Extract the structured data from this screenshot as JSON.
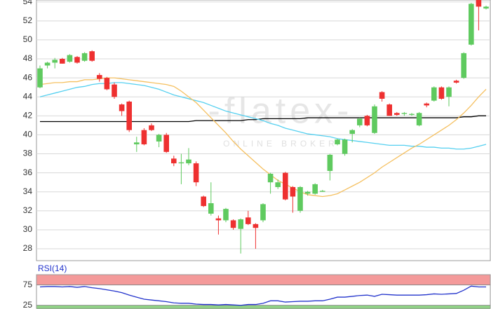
{
  "chart_data": [
    {
      "type": "candlestick",
      "open": [
        45,
        47.3,
        47.6,
        48,
        47.7,
        48.2,
        47.8,
        48.8,
        46.3,
        46,
        45.3,
        43.2,
        43.5,
        39,
        40.5,
        41,
        39.3,
        40,
        37.5,
        37,
        37,
        37,
        33.5,
        31.7,
        31.2,
        31,
        31,
        30.1,
        31.3,
        30.6,
        31,
        35,
        34.5,
        36,
        34.5,
        32,
        33.8,
        33.8,
        34,
        36.2,
        39,
        38,
        40.1,
        41,
        42,
        40.2,
        44.5,
        43.2,
        42.3,
        42.2,
        42.1,
        41,
        43.3,
        43.6,
        45,
        44,
        45.7,
        46,
        49.5,
        54.2,
        53.3
      ],
      "high": [
        47.3,
        47.7,
        48.1,
        48.1,
        48.5,
        48.3,
        48.7,
        48.9,
        46.5,
        46.1,
        45.5,
        43.3,
        43.6,
        39.8,
        40.7,
        41.2,
        40.1,
        40.2,
        37.8,
        38,
        38.6,
        37.2,
        33.6,
        35,
        31.5,
        32.3,
        31.1,
        31.2,
        32,
        30.7,
        32.8,
        36,
        35.3,
        36.1,
        34.6,
        34.6,
        34.1,
        34.9,
        34.2,
        38,
        39.6,
        39.6,
        40.6,
        41.8,
        42.1,
        43.2,
        44.6,
        43.3,
        42.4,
        42.4,
        42.3,
        42.4,
        43.4,
        45.1,
        45.1,
        45.1,
        45.8,
        48.7,
        53.9,
        54.3,
        53.6
      ],
      "low": [
        44.9,
        47,
        47,
        47.5,
        47.6,
        47.5,
        47.7,
        47.7,
        45.6,
        44.7,
        43.8,
        42,
        40.3,
        38.2,
        38.9,
        40.4,
        38.7,
        38.1,
        36.7,
        34.8,
        36.8,
        34.6,
        32.4,
        31.5,
        29.5,
        30.8,
        30,
        27.5,
        30.5,
        28,
        30.8,
        33.8,
        34.3,
        33.1,
        31.8,
        31.8,
        33.6,
        33.7,
        34,
        35.2,
        38.9,
        37.8,
        39.2,
        40.8,
        40.9,
        40.1,
        43.5,
        42,
        42,
        42,
        42,
        40.9,
        42.9,
        43.5,
        43.7,
        43,
        45.4,
        45.9,
        49.4,
        51,
        53.2
      ],
      "close": [
        47,
        47.6,
        47.9,
        47.5,
        48.4,
        47.6,
        48.6,
        47.8,
        45.9,
        44.8,
        44,
        42.5,
        40.5,
        39.2,
        39,
        40.5,
        40,
        38.2,
        37,
        37.1,
        37.4,
        35,
        32.5,
        32.8,
        31,
        32.2,
        30.2,
        31.1,
        30.6,
        30.2,
        32.7,
        35.9,
        35,
        33.2,
        33.5,
        34.5,
        34,
        34.8,
        34.1,
        37.9,
        39.5,
        39.5,
        40.5,
        41.7,
        41,
        43,
        43.8,
        42,
        42.1,
        42.3,
        42.2,
        42.3,
        43.1,
        45,
        43.8,
        45,
        45.5,
        48.6,
        53.8,
        53.5,
        53.5
      ],
      "up_color": "#5fca5f",
      "down_color": "#ee3030",
      "overlays": [
        {
          "color": "#000000",
          "values": [
            41.4,
            41.4,
            41.4,
            41.4,
            41.4,
            41.4,
            41.4,
            41.4,
            41.4,
            41.4,
            41.4,
            41.4,
            41.4,
            41.4,
            41.4,
            41.4,
            41.4,
            41.4,
            41.4,
            41.4,
            41.4,
            41.5,
            41.5,
            41.5,
            41.5,
            41.5,
            41.5,
            41.5,
            41.6,
            41.6,
            41.7,
            41.7,
            41.7,
            41.7,
            41.7,
            41.7,
            41.8,
            41.8,
            41.8,
            41.8,
            41.8,
            41.8,
            41.8,
            41.8,
            41.8,
            41.8,
            41.8,
            41.8,
            41.8,
            41.8,
            41.8,
            41.8,
            41.8,
            41.8,
            41.8,
            41.8,
            41.8,
            41.9,
            41.9,
            42,
            42
          ]
        },
        {
          "color": "#55d0f0",
          "values": [
            44,
            44.2,
            44.4,
            44.6,
            44.8,
            45,
            45.1,
            45.3,
            45.4,
            45.4,
            45.5,
            45.5,
            45.4,
            45.3,
            45.2,
            45,
            44.8,
            44.5,
            44.2,
            44,
            43.8,
            43.6,
            43.4,
            43.1,
            42.8,
            42.5,
            42.3,
            42.1,
            41.9,
            41.7,
            41.5,
            41.2,
            41,
            40.7,
            40.5,
            40.3,
            40.1,
            40,
            39.9,
            39.8,
            39.6,
            39.5,
            39.4,
            39.3,
            39.2,
            39.1,
            39,
            38.9,
            38.9,
            38.9,
            38.8,
            38.8,
            38.7,
            38.7,
            38.6,
            38.6,
            38.5,
            38.5,
            38.6,
            38.8,
            39
          ]
        },
        {
          "color": "#f5c060",
          "values": [
            45.3,
            45.4,
            45.5,
            45.5,
            45.6,
            45.6,
            45.8,
            45.8,
            45.9,
            46,
            46,
            45.9,
            45.8,
            45.7,
            45.6,
            45.5,
            45.4,
            45.3,
            45.1,
            44.6,
            44,
            43.4,
            42.6,
            41.8,
            41,
            40.2,
            39.3,
            38.5,
            37.8,
            37.1,
            36.4,
            35.8,
            35.2,
            34.8,
            34.4,
            34,
            33.7,
            33.6,
            33.5,
            33.6,
            33.8,
            34.2,
            34.6,
            35,
            35.5,
            36,
            36.6,
            37.1,
            37.6,
            38.1,
            38.6,
            39,
            39.5,
            40,
            40.5,
            41,
            41.6,
            42.3,
            43.1,
            44,
            44.8
          ]
        }
      ],
      "ylim": [
        26.75,
        54.2
      ],
      "yticks": [
        28,
        30,
        32,
        34,
        36,
        38,
        40,
        42,
        44,
        46,
        48,
        50,
        52,
        54
      ],
      "grid": true,
      "watermark": "-flatex-",
      "watermark_sub": "ONLINE BROKER"
    },
    {
      "type": "line",
      "title": "RSI(14)",
      "color": "#2233cc",
      "values": [
        70,
        71,
        71,
        70,
        71,
        69,
        71,
        68,
        66,
        63,
        60,
        56,
        50,
        45,
        40,
        38,
        36,
        34,
        31,
        30,
        30,
        28,
        27,
        27,
        26,
        27,
        26,
        25,
        27,
        27,
        30,
        36,
        36,
        33,
        34,
        35,
        35,
        36,
        36,
        40,
        45,
        45,
        47,
        49,
        50,
        47,
        52,
        51,
        50,
        50,
        50,
        50,
        51,
        53,
        52,
        53,
        54,
        62,
        72,
        70,
        70
      ],
      "ylim": [
        16,
        100
      ],
      "yticks": [
        75,
        25
      ],
      "band_colors": [
        "#f49a9a",
        "#8fd884"
      ]
    }
  ]
}
